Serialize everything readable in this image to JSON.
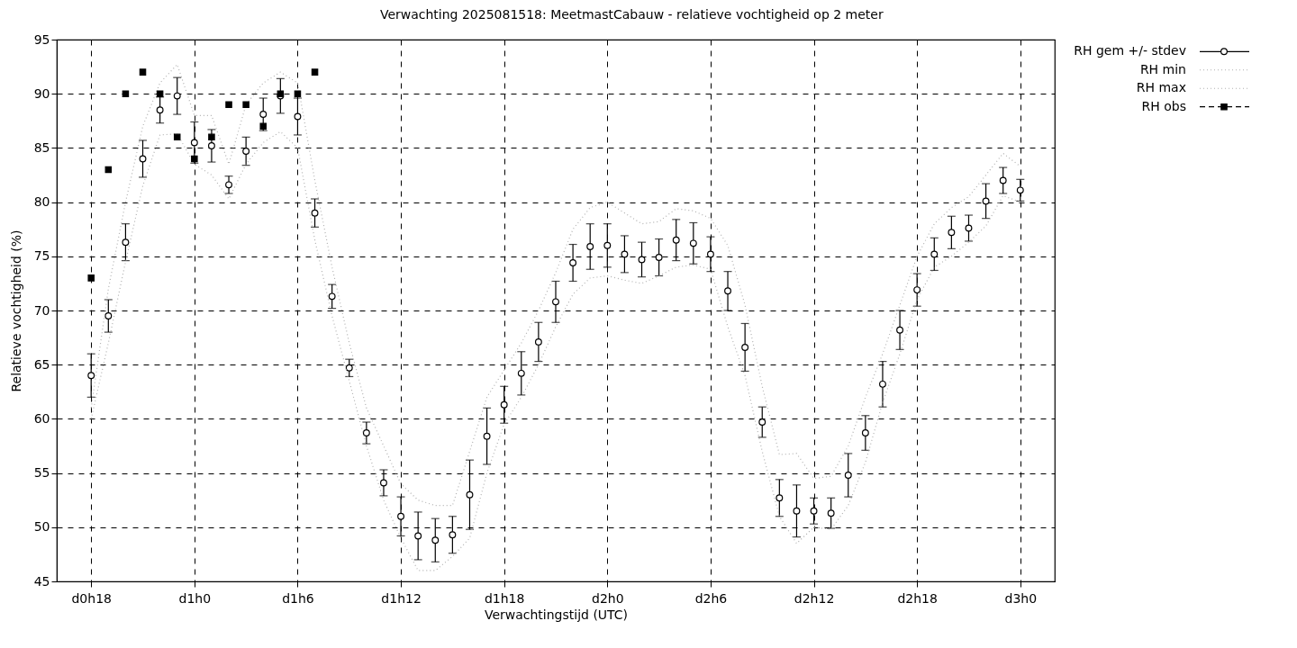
{
  "chart_data": {
    "type": "scatter",
    "title": "Verwachting 2025081518: MeetmastCabauw - relatieve vochtigheid op 2 meter",
    "xlabel": "Verwachtingstijd (UTC)",
    "ylabel": "Relatieve vochtigheid (%)",
    "categories": [
      "d0h18",
      null,
      null,
      null,
      null,
      null,
      "d1h0",
      null,
      null,
      null,
      null,
      null,
      "d1h6",
      null,
      null,
      null,
      null,
      null,
      "d1h12",
      null,
      null,
      null,
      null,
      null,
      "d1h18",
      null,
      null,
      null,
      null,
      null,
      "d2h0",
      null,
      null,
      null,
      null,
      null,
      "d2h6",
      null,
      null,
      null,
      null,
      null,
      "d2h12",
      null,
      null,
      null,
      null,
      null,
      "d2h18",
      null,
      null,
      null,
      null,
      null,
      "d3h0"
    ],
    "ylim": [
      45,
      95
    ],
    "yticks": [
      45,
      50,
      55,
      60,
      65,
      70,
      75,
      80,
      85,
      90,
      95
    ],
    "grid": true,
    "legend": "top right",
    "series": [
      {
        "name": "RH gem +/- stdev",
        "type": "scatter",
        "marker": "circle",
        "color": "#000000",
        "values": [
          64.0,
          69.5,
          76.3,
          84.0,
          88.5,
          89.8,
          85.5,
          85.2,
          81.6,
          84.7,
          88.1,
          89.8,
          87.9,
          79.0,
          71.3,
          64.7,
          58.7,
          54.1,
          51.0,
          49.2,
          48.8,
          49.3,
          53.0,
          58.4,
          61.3,
          64.2,
          67.1,
          70.8,
          74.4,
          75.9,
          76.0,
          75.2,
          74.7,
          74.9,
          76.5,
          76.2,
          75.2,
          71.8,
          66.6,
          59.7,
          52.7,
          51.5,
          51.5,
          51.3,
          54.8,
          58.7,
          63.2,
          68.2,
          71.9,
          75.2,
          77.2,
          77.6,
          80.1,
          82.0,
          81.1
        ],
        "errors": [
          2.0,
          1.5,
          1.7,
          1.7,
          1.2,
          1.7,
          1.9,
          1.5,
          0.8,
          1.3,
          1.5,
          1.6,
          1.7,
          1.3,
          1.1,
          0.8,
          1.0,
          1.2,
          1.8,
          2.2,
          2.0,
          1.7,
          3.2,
          2.6,
          1.7,
          2.0,
          1.8,
          1.9,
          1.7,
          2.1,
          2.0,
          1.7,
          1.6,
          1.7,
          1.9,
          1.9,
          1.6,
          1.8,
          2.2,
          1.4,
          1.7,
          2.4,
          1.2,
          1.4,
          2.0,
          1.6,
          2.1,
          1.8,
          1.5,
          1.5,
          1.5,
          1.2,
          1.6,
          1.2,
          1.0
        ]
      },
      {
        "name": "RH min",
        "type": "line",
        "line_style": "dotted",
        "color": "#b0b0b0",
        "values": [
          60,
          67,
          74.5,
          81.5,
          86.2,
          86.3,
          83.5,
          82.5,
          80.3,
          83.5,
          85.5,
          86.5,
          85,
          76.5,
          69.5,
          63.5,
          57.5,
          52.5,
          49,
          46,
          46,
          47.3,
          49,
          55,
          59.5,
          62,
          65,
          68.5,
          71.5,
          73,
          73.2,
          72.8,
          72.5,
          73.2,
          74,
          74.2,
          73.8,
          68.5,
          64,
          57,
          51,
          48.5,
          50,
          49.8,
          52,
          56,
          61.5,
          66,
          71,
          74,
          75,
          76.3,
          77.8,
          80.6,
          80
        ]
      },
      {
        "name": "RH max",
        "type": "line",
        "line_style": "dotted",
        "color": "#b0b0b0",
        "values": [
          61,
          72,
          80,
          87,
          91,
          92.7,
          88,
          88,
          83.5,
          89,
          91,
          92,
          91,
          82,
          74,
          67,
          61,
          57.5,
          54,
          52.5,
          52,
          52,
          57,
          62,
          64.5,
          67,
          70,
          73.5,
          77.5,
          79.5,
          80,
          79,
          78,
          78.2,
          79.4,
          79.2,
          78.5,
          76,
          70.5,
          63,
          56.7,
          56.8,
          54.5,
          54.7,
          57.5,
          62,
          66,
          70.5,
          75,
          78,
          79.5,
          80.5,
          82.5,
          84.5,
          83.3
        ]
      },
      {
        "name": "RH obs",
        "type": "scatter",
        "marker": "square",
        "color": "#000000",
        "values": [
          73,
          83,
          90,
          92,
          90,
          86,
          84,
          86,
          89,
          89,
          87,
          90,
          90,
          92,
          null,
          null,
          null,
          null,
          null,
          null,
          null,
          null,
          null,
          null,
          null,
          null,
          null,
          null,
          null,
          null,
          null,
          null,
          null,
          null,
          null,
          null,
          null,
          null,
          null,
          null,
          null,
          null,
          null,
          null,
          null,
          null,
          null,
          null,
          null,
          null,
          null,
          null,
          null,
          null,
          null
        ]
      }
    ]
  }
}
